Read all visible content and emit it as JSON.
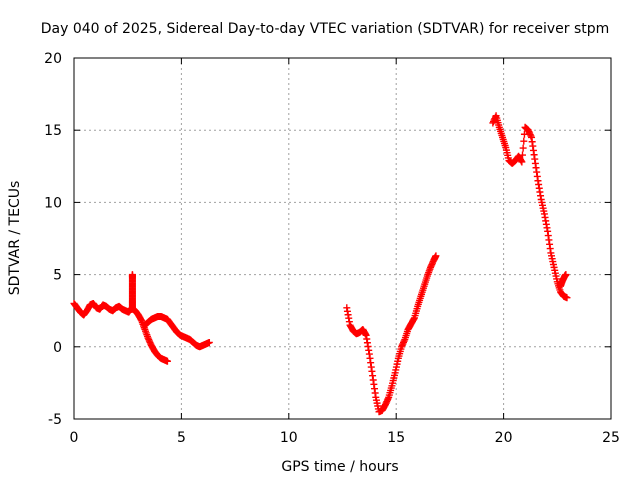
{
  "chart_data": {
    "type": "scatter",
    "title": "Day 040 of 2025, Sidereal Day-to-day VTEC variation (SDTVAR) for receiver stpm",
    "xlabel": "GPS time / hours",
    "ylabel": "SDTVAR / TECUs",
    "xlim": [
      0,
      25
    ],
    "ylim": [
      -5,
      20
    ],
    "xticks": [
      0,
      5,
      10,
      15,
      20,
      25
    ],
    "yticks": [
      -5,
      0,
      5,
      10,
      15,
      20
    ],
    "xtick_labels": [
      "0",
      "5",
      "10",
      "15",
      "20",
      "25"
    ],
    "ytick_labels": [
      "-5",
      "0",
      "5",
      "10",
      "15",
      "20"
    ],
    "grid": true,
    "marker": "+",
    "color": "#ff0000",
    "series": [
      {
        "name": "stpm",
        "segments": [
          {
            "x": [
              0.0,
              0.15,
              0.3,
              0.45,
              0.6,
              0.75,
              0.9,
              1.05,
              1.2,
              1.35,
              1.5,
              1.65,
              1.8,
              1.95,
              2.1,
              2.25,
              2.4,
              2.55,
              2.7,
              2.85,
              3.0,
              3.15,
              3.3,
              3.45,
              3.6,
              3.75,
              3.9,
              4.05,
              4.2,
              4.35
            ],
            "y": [
              3.0,
              2.7,
              2.4,
              2.2,
              2.5,
              2.9,
              3.0,
              2.7,
              2.6,
              2.9,
              2.8,
              2.6,
              2.5,
              2.7,
              2.8,
              2.6,
              2.5,
              2.4,
              2.7,
              2.5,
              2.2,
              1.8,
              1.2,
              0.6,
              0.1,
              -0.3,
              -0.6,
              -0.8,
              -0.9,
              -1.0
            ]
          },
          {
            "x": [
              2.72,
              2.72,
              2.72,
              2.72,
              2.72,
              2.72,
              2.72,
              2.72
            ],
            "y": [
              2.6,
              2.9,
              3.2,
              3.6,
              4.0,
              4.4,
              4.8,
              5.0
            ]
          },
          {
            "x": [
              3.3,
              3.45,
              3.6,
              3.75,
              3.9,
              4.05,
              4.2,
              4.35,
              4.5,
              4.65,
              4.8,
              4.95,
              5.1,
              5.25,
              5.4,
              5.55,
              5.7,
              5.85,
              6.0,
              6.15,
              6.3
            ],
            "y": [
              1.5,
              1.7,
              1.9,
              2.0,
              2.1,
              2.1,
              2.0,
              1.9,
              1.6,
              1.3,
              1.0,
              0.8,
              0.7,
              0.6,
              0.5,
              0.3,
              0.1,
              0.0,
              0.1,
              0.2,
              0.3
            ]
          },
          {
            "x": [
              12.7,
              12.85,
              13.0,
              13.15,
              13.3,
              13.45,
              13.6,
              13.75,
              13.9,
              14.05,
              14.2,
              14.35,
              14.5,
              14.65,
              14.8,
              14.95,
              15.1,
              15.25,
              15.4,
              15.55,
              15.7,
              15.85,
              16.0,
              16.15,
              16.3,
              16.45,
              16.6,
              16.75,
              16.85
            ],
            "y": [
              2.7,
              1.5,
              1.1,
              0.9,
              1.0,
              1.2,
              0.8,
              -0.5,
              -2.0,
              -3.5,
              -4.5,
              -4.4,
              -4.0,
              -3.5,
              -2.7,
              -1.8,
              -0.8,
              0.0,
              0.5,
              1.2,
              1.6,
              2.0,
              2.8,
              3.5,
              4.2,
              4.9,
              5.5,
              6.0,
              6.3
            ]
          },
          {
            "x": [
              19.5,
              19.65,
              19.8,
              19.95,
              20.1,
              20.25,
              20.4,
              20.55,
              20.7,
              20.85,
              21.0,
              21.15,
              21.3,
              21.45,
              21.6,
              21.75,
              21.9,
              22.05,
              22.2,
              22.35,
              22.5,
              22.65,
              22.8,
              22.95
            ],
            "y": [
              15.5,
              16.0,
              15.2,
              14.5,
              13.8,
              12.9,
              12.7,
              12.9,
              13.2,
              12.8,
              15.2,
              15.0,
              14.5,
              13.0,
              11.5,
              10.2,
              9.2,
              8.0,
              6.5,
              5.5,
              4.5,
              3.8,
              3.5,
              3.4
            ]
          },
          {
            "x": [
              22.65,
              22.75,
              22.85,
              22.9
            ],
            "y": [
              4.2,
              4.6,
              4.9,
              5.0
            ]
          }
        ]
      }
    ]
  }
}
